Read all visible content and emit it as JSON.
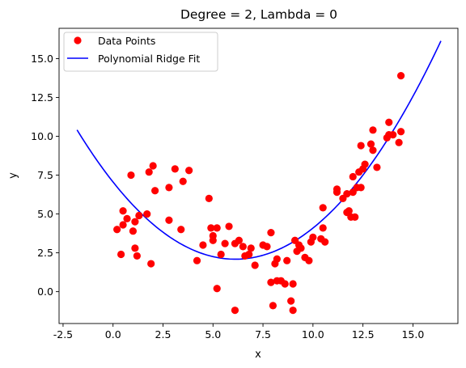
{
  "chart_data": {
    "type": "scatter",
    "title": "Degree = 2, Lambda = 0",
    "xlabel": "x",
    "ylabel": "y",
    "xlim": [
      -2.7,
      17.25
    ],
    "ylim": [
      -2.05,
      16.95
    ],
    "xticks": [
      -2.5,
      0.0,
      2.5,
      5.0,
      7.5,
      10.0,
      12.5,
      15.0
    ],
    "yticks": [
      0.0,
      2.5,
      5.0,
      7.5,
      10.0,
      12.5,
      15.0
    ],
    "grid": false,
    "legend_position": "top-left",
    "series": [
      {
        "name": "Data Points",
        "kind": "scatter",
        "color": "#ff0000",
        "points": [
          [
            0.2,
            4.0
          ],
          [
            0.4,
            2.4
          ],
          [
            0.5,
            4.3
          ],
          [
            0.5,
            5.2
          ],
          [
            0.7,
            4.7
          ],
          [
            0.9,
            7.5
          ],
          [
            1.0,
            3.9
          ],
          [
            1.1,
            2.8
          ],
          [
            1.1,
            4.5
          ],
          [
            1.2,
            2.3
          ],
          [
            1.3,
            4.9
          ],
          [
            1.7,
            5.0
          ],
          [
            1.8,
            7.7
          ],
          [
            1.9,
            1.8
          ],
          [
            2.0,
            8.1
          ],
          [
            2.1,
            6.5
          ],
          [
            2.8,
            4.6
          ],
          [
            2.8,
            6.7
          ],
          [
            3.1,
            7.9
          ],
          [
            3.4,
            4.0
          ],
          [
            3.5,
            7.1
          ],
          [
            3.8,
            7.8
          ],
          [
            4.2,
            2.0
          ],
          [
            4.5,
            3.0
          ],
          [
            4.8,
            6.0
          ],
          [
            4.9,
            4.1
          ],
          [
            5.0,
            3.3
          ],
          [
            5.0,
            3.6
          ],
          [
            5.2,
            4.1
          ],
          [
            5.2,
            0.2
          ],
          [
            5.4,
            2.4
          ],
          [
            5.6,
            3.1
          ],
          [
            5.8,
            4.2
          ],
          [
            6.1,
            3.1
          ],
          [
            6.1,
            -1.2
          ],
          [
            6.3,
            3.3
          ],
          [
            6.5,
            2.9
          ],
          [
            6.6,
            2.3
          ],
          [
            6.8,
            2.4
          ],
          [
            6.9,
            2.8
          ],
          [
            7.1,
            1.7
          ],
          [
            7.5,
            3.0
          ],
          [
            7.7,
            2.9
          ],
          [
            7.9,
            3.8
          ],
          [
            7.9,
            0.6
          ],
          [
            8.0,
            -0.9
          ],
          [
            8.1,
            1.8
          ],
          [
            8.2,
            2.1
          ],
          [
            8.2,
            0.7
          ],
          [
            8.4,
            0.7
          ],
          [
            8.6,
            0.5
          ],
          [
            8.7,
            2.0
          ],
          [
            8.9,
            -0.6
          ],
          [
            9.0,
            -1.2
          ],
          [
            9.0,
            0.5
          ],
          [
            9.1,
            3.3
          ],
          [
            9.2,
            2.6
          ],
          [
            9.3,
            3.0
          ],
          [
            9.4,
            2.8
          ],
          [
            9.6,
            2.2
          ],
          [
            9.8,
            2.0
          ],
          [
            9.9,
            3.2
          ],
          [
            10.0,
            3.5
          ],
          [
            10.4,
            3.4
          ],
          [
            10.5,
            4.1
          ],
          [
            10.5,
            5.4
          ],
          [
            10.6,
            3.2
          ],
          [
            11.2,
            6.4
          ],
          [
            11.2,
            6.6
          ],
          [
            11.5,
            6.0
          ],
          [
            11.7,
            5.1
          ],
          [
            11.7,
            6.3
          ],
          [
            11.8,
            5.2
          ],
          [
            11.9,
            4.8
          ],
          [
            12.0,
            6.4
          ],
          [
            12.0,
            7.4
          ],
          [
            12.1,
            4.8
          ],
          [
            12.2,
            6.7
          ],
          [
            12.3,
            7.7
          ],
          [
            12.4,
            6.7
          ],
          [
            12.4,
            9.4
          ],
          [
            12.5,
            7.9
          ],
          [
            12.6,
            8.2
          ],
          [
            12.9,
            9.5
          ],
          [
            13.0,
            9.1
          ],
          [
            13.0,
            10.4
          ],
          [
            13.2,
            8.0
          ],
          [
            13.7,
            9.9
          ],
          [
            13.8,
            10.1
          ],
          [
            13.8,
            10.9
          ],
          [
            14.0,
            10.1
          ],
          [
            14.3,
            9.6
          ],
          [
            14.4,
            10.3
          ],
          [
            14.4,
            13.9
          ]
        ]
      },
      {
        "name": "Polynomial Ridge Fit",
        "kind": "line",
        "color": "#0000ff",
        "x_range": [
          -1.8,
          16.4
        ],
        "coefficients": {
          "a": 0.1328,
          "b": -1.6244,
          "c": 7.0574
        }
      }
    ]
  }
}
